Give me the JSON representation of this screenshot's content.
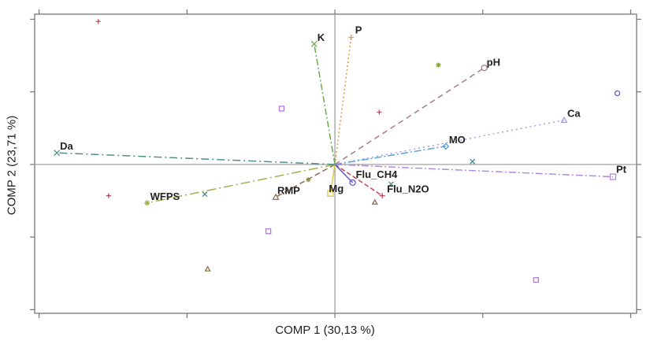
{
  "chart_data": {
    "type": "scatter",
    "subtype": "pca-biplot",
    "title": "",
    "xlabel": "COMP 1 (30,13 %)",
    "ylabel": "COMP 2 (23,71 %)",
    "xlim": [
      -2.03,
      2.04
    ],
    "ylim": [
      -2.05,
      2.07
    ],
    "xticks": [
      -2,
      -1,
      0,
      1,
      2
    ],
    "yticks": [
      -2,
      -1,
      0,
      1,
      2
    ],
    "tick_labels_shown": false,
    "grid": false,
    "reference_lines": {
      "x": 0,
      "y": 0
    },
    "legend": null,
    "vectors": [
      {
        "name": "K",
        "x": -0.14,
        "y": 1.66,
        "color": "#6aaa4e",
        "dash": "8,3,2,3",
        "marker": "x"
      },
      {
        "name": "P",
        "x": 0.11,
        "y": 1.75,
        "color": "#d99a45",
        "dash": "2,3",
        "marker": "+"
      },
      {
        "name": "pH",
        "x": 1.01,
        "y": 1.33,
        "color": "#a77a86",
        "dash": "7,5",
        "marker": "circle"
      },
      {
        "name": "Ca",
        "x": 1.55,
        "y": 0.61,
        "color": "#a79ce0",
        "dash": "2,4",
        "marker": "triangle"
      },
      {
        "name": "MO",
        "x": 0.75,
        "y": 0.25,
        "color": "#5a9fd6",
        "dash": "9,3,2,3",
        "marker": "diamond"
      },
      {
        "name": "Pt",
        "x": 1.88,
        "y": -0.17,
        "color": "#b18be0",
        "dash": "9,3,2,3",
        "marker": "square"
      },
      {
        "name": "Flu_N2O",
        "x": 0.32,
        "y": -0.43,
        "color": "#b8485e",
        "dash": "6,3",
        "marker": "+"
      },
      {
        "name": "Flu_CH4",
        "x": 0.12,
        "y": -0.25,
        "color": "#5f5fc8",
        "dash": "",
        "marker": "circle"
      },
      {
        "name": "Mg",
        "x": -0.03,
        "y": -0.4,
        "color": "#e0cc3c",
        "dash": "",
        "marker": "square"
      },
      {
        "name": "RMP",
        "x": -0.4,
        "y": -0.45,
        "color": "#8a7058",
        "dash": "7,4",
        "marker": "triangle"
      },
      {
        "name": "WFPS",
        "x": -1.27,
        "y": -0.53,
        "color": "#a2b050",
        "dash": "12,4,2,4",
        "marker": "asterisk"
      },
      {
        "name": "Da",
        "x": -1.88,
        "y": 0.16,
        "color": "#4d8f8a",
        "dash": "10,4,2,4",
        "marker": "x"
      }
    ],
    "observations": [
      {
        "x": -1.6,
        "y": 1.97,
        "color": "#b8485e",
        "marker": "+"
      },
      {
        "x": -0.36,
        "y": 0.77,
        "color": "#b478d8",
        "marker": "square"
      },
      {
        "x": 0.7,
        "y": 1.37,
        "color": "#8aa040",
        "marker": "asterisk"
      },
      {
        "x": 0.3,
        "y": 0.72,
        "color": "#b8485e",
        "marker": "+"
      },
      {
        "x": 1.91,
        "y": 0.98,
        "color": "#5f5fc8",
        "marker": "circle"
      },
      {
        "x": 0.93,
        "y": 0.04,
        "color": "#4d8f8a",
        "marker": "x"
      },
      {
        "x": -1.53,
        "y": -0.43,
        "color": "#b8485e",
        "marker": "+"
      },
      {
        "x": -0.88,
        "y": -0.41,
        "color": "#4d8f8a",
        "marker": "x"
      },
      {
        "x": -0.18,
        "y": -0.21,
        "color": "#8aa040",
        "marker": "asterisk"
      },
      {
        "x": 0.27,
        "y": -0.52,
        "color": "#8a7058",
        "marker": "triangle"
      },
      {
        "x": 0.38,
        "y": -0.27,
        "color": "#4d8f8a",
        "marker": "x"
      },
      {
        "x": -0.45,
        "y": -0.92,
        "color": "#b478d8",
        "marker": "square"
      },
      {
        "x": -0.86,
        "y": -1.44,
        "color": "#8a7058",
        "marker": "triangle"
      },
      {
        "x": 1.36,
        "y": -1.59,
        "color": "#b478d8",
        "marker": "square"
      }
    ]
  }
}
